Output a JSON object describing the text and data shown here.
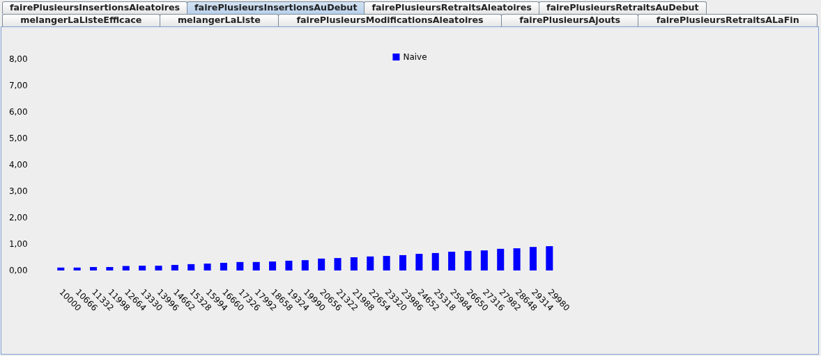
{
  "chart_data": {
    "type": "bar",
    "categories": [
      "10000",
      "10666",
      "11332",
      "11998",
      "12664",
      "13330",
      "13996",
      "14662",
      "15328",
      "15994",
      "16660",
      "17326",
      "17992",
      "18658",
      "19324",
      "19990",
      "20656",
      "21322",
      "21988",
      "22654",
      "23320",
      "23986",
      "24652",
      "25318",
      "25984",
      "26650",
      "27316",
      "27982",
      "28648",
      "29314",
      "29980"
    ],
    "series": [
      {
        "name": "Naive",
        "color": "#0000ff",
        "values": [
          0.11,
          0.11,
          0.13,
          0.13,
          0.17,
          0.18,
          0.18,
          0.21,
          0.24,
          0.26,
          0.29,
          0.32,
          0.32,
          0.34,
          0.37,
          0.39,
          0.45,
          0.47,
          0.5,
          0.53,
          0.55,
          0.58,
          0.63,
          0.66,
          0.71,
          0.74,
          0.76,
          0.82,
          0.84,
          0.89,
          0.92
        ]
      }
    ],
    "ylim": [
      0,
      8
    ],
    "yticks": [
      {
        "value": 0,
        "label": "0,00"
      },
      {
        "value": 1,
        "label": "1,00"
      },
      {
        "value": 2,
        "label": "2,00"
      },
      {
        "value": 3,
        "label": "3,00"
      },
      {
        "value": 4,
        "label": "4,00"
      },
      {
        "value": 5,
        "label": "5,00"
      },
      {
        "value": 6,
        "label": "6,00"
      },
      {
        "value": 7,
        "label": "7,00"
      },
      {
        "value": 8,
        "label": "8,00"
      }
    ],
    "legend": "top",
    "annotations": [
      "fairePlusieursInsertionsAleatoires",
      "fairePlusieursInsertionsAuDebut",
      "fairePlusieursRetraitsAleatoires",
      "fairePlusieursRetraitsAuDebut",
      "melangerLaListeEfficace",
      "melangerLaListe",
      "fairePlusieursModificationsAleatoires",
      "fairePlusieursAjouts",
      "fairePlusieursRetraitsALaFin"
    ]
  }
}
